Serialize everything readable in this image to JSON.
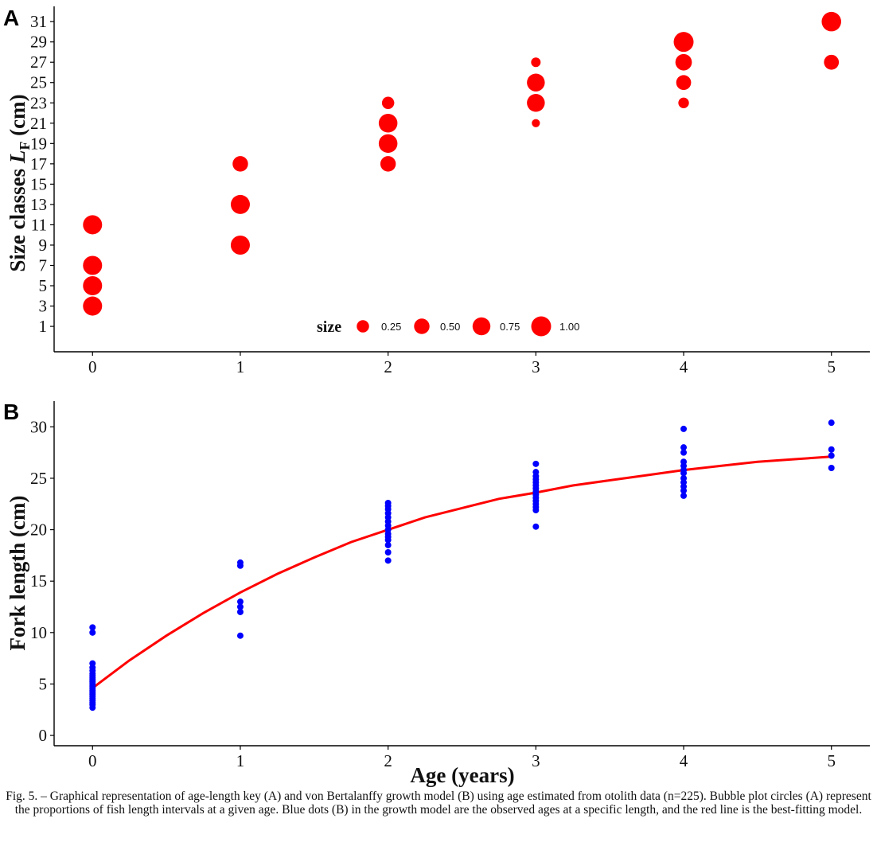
{
  "panel_a_label": "A",
  "panel_b_label": "B",
  "caption": "Fig. 5. – Graphical representation of age-length key (A) and von Bertalanffy growth model (B) using age estimated from otolith data (n=225). Bubble plot circles (A) represent the proportions of fish length intervals at a given age. Blue dots (B) in the growth model are the observed ages at a specific length, and the red line is the best-fitting model.",
  "colors": {
    "bubble": "#ff0000",
    "dot": "#0000ff",
    "curve": "#ff0000",
    "axis": "#000000"
  },
  "chart_data": [
    {
      "type": "scatter",
      "panel": "A",
      "xlabel": "",
      "ylabel_main": "Size classes ",
      "ylabel_italic": "L",
      "ylabel_sub": "F",
      "ylabel_unit": " (cm)",
      "x_ticks": [
        0,
        1,
        2,
        3,
        4,
        5
      ],
      "y_ticks": [
        1,
        3,
        5,
        7,
        9,
        11,
        13,
        15,
        17,
        19,
        21,
        23,
        25,
        27,
        29,
        31
      ],
      "xlim": [
        -0.26,
        5.26
      ],
      "ylim": [
        -1.5,
        32.5
      ],
      "legend_title": "size",
      "legend_placement": "bottom-center (inside)",
      "legend": [
        0.25,
        0.5,
        0.75,
        1.0
      ],
      "legend_labels": [
        "0.25",
        "0.50",
        "0.75",
        "1.00"
      ],
      "points": [
        {
          "age": 0,
          "size_class": 3,
          "size": 0.9
        },
        {
          "age": 0,
          "size_class": 5,
          "size": 0.9
        },
        {
          "age": 0,
          "size_class": 7,
          "size": 0.9
        },
        {
          "age": 0,
          "size_class": 11,
          "size": 0.9
        },
        {
          "age": 1,
          "size_class": 9,
          "size": 0.9
        },
        {
          "age": 1,
          "size_class": 13,
          "size": 0.9
        },
        {
          "age": 1,
          "size_class": 17,
          "size": 0.5
        },
        {
          "age": 2,
          "size_class": 17,
          "size": 0.5
        },
        {
          "age": 2,
          "size_class": 19,
          "size": 0.85
        },
        {
          "age": 2,
          "size_class": 21,
          "size": 0.85
        },
        {
          "age": 2,
          "size_class": 23,
          "size": 0.25
        },
        {
          "age": 3,
          "size_class": 21,
          "size": 0.05
        },
        {
          "age": 3,
          "size_class": 23,
          "size": 0.75
        },
        {
          "age": 3,
          "size_class": 25,
          "size": 0.75
        },
        {
          "age": 3,
          "size_class": 27,
          "size": 0.1
        },
        {
          "age": 4,
          "size_class": 23,
          "size": 0.15
        },
        {
          "age": 4,
          "size_class": 25,
          "size": 0.45
        },
        {
          "age": 4,
          "size_class": 27,
          "size": 0.6
        },
        {
          "age": 4,
          "size_class": 29,
          "size": 1.0
        },
        {
          "age": 5,
          "size_class": 27,
          "size": 0.45
        },
        {
          "age": 5,
          "size_class": 31,
          "size": 0.95
        }
      ]
    },
    {
      "type": "scatter",
      "panel": "B",
      "xlabel": "Age (years)",
      "ylabel": "Fork length (cm)",
      "x_ticks": [
        0,
        1,
        2,
        3,
        4,
        5
      ],
      "y_ticks": [
        0,
        5,
        10,
        15,
        20,
        25,
        30
      ],
      "xlim": [
        -0.26,
        5.26
      ],
      "ylim": [
        -1.0,
        32.5
      ],
      "series": [
        {
          "points": [
            [
              0,
              2.7
            ],
            [
              0,
              3.0
            ],
            [
              0,
              3.2
            ],
            [
              0,
              3.4
            ],
            [
              0,
              3.6
            ],
            [
              0,
              3.8
            ],
            [
              0,
              4.0
            ],
            [
              0,
              4.2
            ],
            [
              0,
              4.4
            ],
            [
              0,
              4.6
            ],
            [
              0,
              4.8
            ],
            [
              0,
              5.0
            ],
            [
              0,
              5.2
            ],
            [
              0,
              5.4
            ],
            [
              0,
              5.6
            ],
            [
              0,
              5.8
            ],
            [
              0,
              6.0
            ],
            [
              0,
              6.3
            ],
            [
              0,
              6.6
            ],
            [
              0,
              7.0
            ],
            [
              0,
              10.0
            ],
            [
              0,
              10.5
            ],
            [
              1,
              9.7
            ],
            [
              1,
              12.0
            ],
            [
              1,
              12.5
            ],
            [
              1,
              13.0
            ],
            [
              1,
              16.5
            ],
            [
              1,
              16.8
            ],
            [
              2,
              17.0
            ],
            [
              2,
              17.8
            ],
            [
              2,
              18.5
            ],
            [
              2,
              19.0
            ],
            [
              2,
              19.3
            ],
            [
              2,
              19.6
            ],
            [
              2,
              20.0
            ],
            [
              2,
              20.4
            ],
            [
              2,
              20.8
            ],
            [
              2,
              21.2
            ],
            [
              2,
              21.6
            ],
            [
              2,
              22.0
            ],
            [
              2,
              22.3
            ],
            [
              2,
              22.6
            ],
            [
              3,
              20.3
            ],
            [
              3,
              21.9
            ],
            [
              3,
              22.2
            ],
            [
              3,
              22.5
            ],
            [
              3,
              22.8
            ],
            [
              3,
              23.1
            ],
            [
              3,
              23.4
            ],
            [
              3,
              23.7
            ],
            [
              3,
              24.0
            ],
            [
              3,
              24.3
            ],
            [
              3,
              24.6
            ],
            [
              3,
              24.9
            ],
            [
              3,
              25.2
            ],
            [
              3,
              25.6
            ],
            [
              3,
              26.4
            ],
            [
              4,
              23.3
            ],
            [
              4,
              23.8
            ],
            [
              4,
              24.2
            ],
            [
              4,
              24.6
            ],
            [
              4,
              25.0
            ],
            [
              4,
              25.5
            ],
            [
              4,
              25.8
            ],
            [
              4,
              26.2
            ],
            [
              4,
              26.6
            ],
            [
              4,
              27.5
            ],
            [
              4,
              28.0
            ],
            [
              4,
              29.8
            ],
            [
              5,
              26.0
            ],
            [
              5,
              27.2
            ],
            [
              5,
              27.8
            ],
            [
              5,
              30.4
            ]
          ]
        },
        {
          "curve": "von Bertalanffy fit",
          "x": [
            0,
            0.25,
            0.5,
            0.75,
            1,
            1.25,
            1.5,
            1.75,
            2,
            2.25,
            2.5,
            2.75,
            3,
            3.25,
            3.5,
            3.75,
            4,
            4.25,
            4.5,
            4.75,
            5
          ],
          "y": [
            4.6,
            7.3,
            9.7,
            11.9,
            13.9,
            15.7,
            17.3,
            18.8,
            20.0,
            21.2,
            22.1,
            23.0,
            23.6,
            24.3,
            24.8,
            25.3,
            25.8,
            26.2,
            26.6,
            26.85,
            27.1
          ]
        }
      ]
    }
  ]
}
